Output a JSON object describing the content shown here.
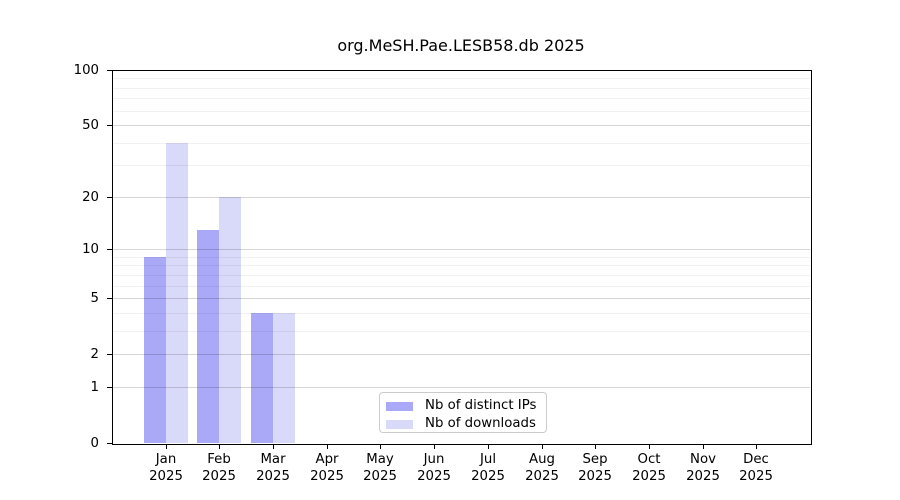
{
  "title": "org.MeSH.Pae.LESB58.db 2025",
  "legend": {
    "items": [
      {
        "label": "Nb of distinct IPs",
        "color": "#a9a9f8"
      },
      {
        "label": "Nb of downloads",
        "color": "#d9d9f9"
      }
    ]
  },
  "chart_data": {
    "type": "bar",
    "title": "org.MeSH.Pae.LESB58.db 2025",
    "categories": [
      "Jan",
      "Feb",
      "Mar",
      "Apr",
      "May",
      "Jun",
      "Jul",
      "Aug",
      "Sep",
      "Oct",
      "Nov",
      "Dec"
    ],
    "year_label": "2025",
    "series": [
      {
        "name": "Nb of distinct IPs",
        "color": "#a9a9f8",
        "values": [
          9,
          13,
          4,
          0,
          0,
          0,
          0,
          0,
          0,
          0,
          0,
          0
        ]
      },
      {
        "name": "Nb of downloads",
        "color": "#d9d9f9",
        "values": [
          40,
          20,
          4,
          0,
          0,
          0,
          0,
          0,
          0,
          0,
          0,
          0
        ]
      }
    ],
    "xlabel": "",
    "ylabel": "",
    "yscale": "log1p",
    "ylim": [
      0,
      100
    ],
    "yticks": [
      100,
      50,
      20,
      10,
      5,
      2,
      1,
      0
    ],
    "yminorticks": [
      3,
      4,
      6,
      7,
      8,
      9,
      30,
      40,
      60,
      70,
      80,
      90
    ],
    "grid": "horizontal",
    "legend_position": "bottom-center"
  }
}
